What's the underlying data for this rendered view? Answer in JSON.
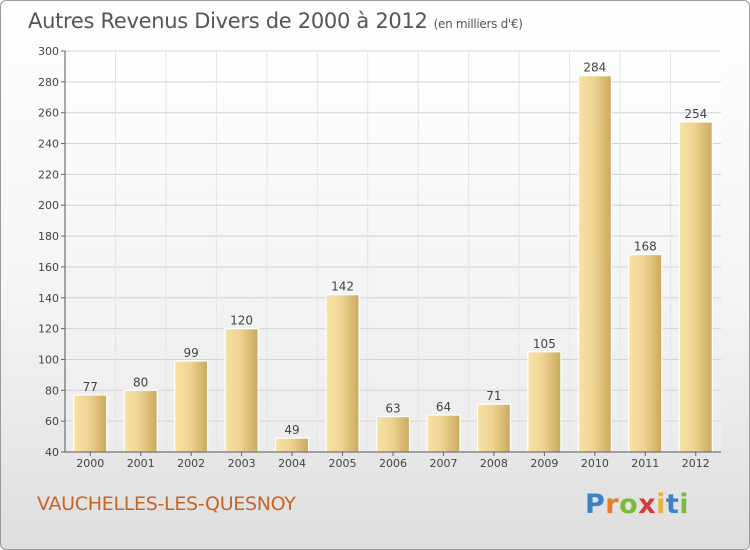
{
  "page": {
    "title": "Autres Revenus Divers de 2000 à 2012",
    "unit": "(en milliers d'€)",
    "footer": "VAUCHELLES-LES-QUESNOY",
    "logo": "Proxiti"
  },
  "chart_data": {
    "type": "bar",
    "title": "Autres Revenus Divers de 2000 à 2012",
    "subtitle": "(en milliers d'€)",
    "xlabel": "",
    "ylabel": "",
    "categories": [
      "2000",
      "2001",
      "2002",
      "2003",
      "2004",
      "2005",
      "2006",
      "2007",
      "2008",
      "2009",
      "2010",
      "2011",
      "2012"
    ],
    "values": [
      77,
      80,
      99,
      120,
      49,
      142,
      63,
      64,
      71,
      105,
      284,
      168,
      254
    ],
    "ylim": [
      40,
      300
    ],
    "yticks": [
      40,
      60,
      80,
      100,
      120,
      140,
      160,
      180,
      200,
      220,
      240,
      260,
      280,
      300
    ],
    "grid": true,
    "legend": "none",
    "bar_color": "#e8cc85",
    "bar_color_light": "#f6e3a6",
    "bar_color_dark": "#c9a95c"
  }
}
